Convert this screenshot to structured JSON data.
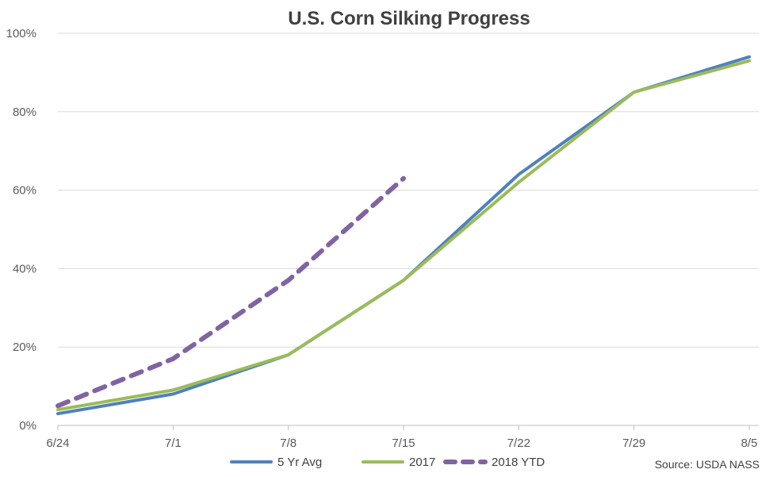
{
  "chart_data": {
    "type": "line",
    "title": "U.S. Corn Silking Progress",
    "categories": [
      "6/24",
      "7/1",
      "7/8",
      "7/15",
      "7/22",
      "7/29",
      "8/5"
    ],
    "y_ticks": [
      "0%",
      "20%",
      "40%",
      "60%",
      "80%",
      "100%"
    ],
    "ylim": [
      0,
      100
    ],
    "grid": true,
    "legend_position": "bottom",
    "series": [
      {
        "name": "5 Yr Avg",
        "color": "#4f81bd",
        "dash": "solid",
        "values": [
          3,
          8,
          18,
          37,
          64,
          85,
          94
        ]
      },
      {
        "name": "2017",
        "color": "#9bbb59",
        "dash": "solid",
        "values": [
          4,
          9,
          18,
          37,
          62,
          85,
          93
        ]
      },
      {
        "name": "2018 YTD",
        "color": "#8064a2",
        "dash": "dashed",
        "values": [
          5,
          17,
          37,
          63,
          null,
          null,
          null
        ]
      }
    ],
    "source": "Source: USDA NASS"
  }
}
